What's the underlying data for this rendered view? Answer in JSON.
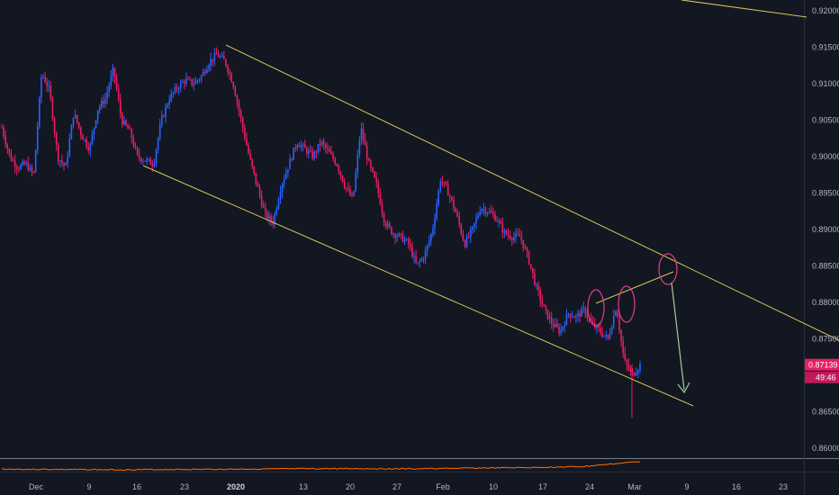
{
  "chart_data": {
    "type": "candlestick",
    "instrument_last_price": "0.87139",
    "countdown": "49:46",
    "y_axis": {
      "ticks": [
        "0.92000",
        "0.91500",
        "0.91000",
        "0.90500",
        "0.90000",
        "0.89500",
        "0.89000",
        "0.88500",
        "0.88000",
        "0.87500",
        "0.87000",
        "0.86500",
        "0.86000"
      ],
      "ylim": [
        0.8585,
        0.9209
      ]
    },
    "x_axis": {
      "ticks": [
        {
          "label": "Dec",
          "bold": false
        },
        {
          "label": "9",
          "bold": false
        },
        {
          "label": "16",
          "bold": false
        },
        {
          "label": "23",
          "bold": false
        },
        {
          "label": "2020",
          "bold": true
        },
        {
          "label": "13",
          "bold": false
        },
        {
          "label": "20",
          "bold": false
        },
        {
          "label": "27",
          "bold": false
        },
        {
          "label": "Feb",
          "bold": false
        },
        {
          "label": "10",
          "bold": false
        },
        {
          "label": "17",
          "bold": false
        },
        {
          "label": "24",
          "bold": false
        },
        {
          "label": "Mar",
          "bold": false
        },
        {
          "label": "9",
          "bold": false
        },
        {
          "label": "16",
          "bold": false
        },
        {
          "label": "23",
          "bold": false
        }
      ]
    },
    "price_path_close": [
      0.904,
      0.9,
      0.8985,
      0.899,
      0.8975,
      0.9115,
      0.909,
      0.9,
      0.8985,
      0.906,
      0.903,
      0.901,
      0.9065,
      0.908,
      0.912,
      0.905,
      0.9035,
      0.9,
      0.8995,
      0.899,
      0.905,
      0.908,
      0.9095,
      0.9105,
      0.91,
      0.911,
      0.913,
      0.914,
      0.913,
      0.91,
      0.905,
      0.9,
      0.896,
      0.892,
      0.891,
      0.896,
      0.899,
      0.902,
      0.901,
      0.9,
      0.902,
      0.9005,
      0.899,
      0.896,
      0.894,
      0.904,
      0.899,
      0.896,
      0.891,
      0.8895,
      0.889,
      0.888,
      0.885,
      0.8865,
      0.89,
      0.897,
      0.895,
      0.892,
      0.888,
      0.89,
      0.893,
      0.8925,
      0.8915,
      0.8895,
      0.889,
      0.889,
      0.886,
      0.882,
      0.879,
      0.877,
      0.876,
      0.8785,
      0.878,
      0.879,
      0.877,
      0.876,
      0.875,
      0.8795,
      0.872,
      0.87,
      0.8714
    ],
    "series": [
      {
        "name": "",
        "values": [
          0.8595,
          0.8594,
          0.8593,
          0.8594,
          0.8595,
          0.8596,
          0.8597,
          0.8596,
          0.8598,
          0.86,
          0.8603,
          0.862
        ]
      }
    ],
    "annotations": [
      "upper channel line",
      "lower channel line",
      "neckline",
      "three circles",
      "arrow down"
    ],
    "colors": {
      "background": "#131722",
      "up_candle": "#2962ff",
      "down_candle": "#e91e63",
      "channel": "#d8c55a",
      "circle": "#e33d8a",
      "arrow": "#a8c8a0",
      "indicator": "#ff6d00",
      "axis_text": "#b2b5be",
      "badge_price": "#e91e63",
      "badge_time": "#c2185b"
    }
  }
}
